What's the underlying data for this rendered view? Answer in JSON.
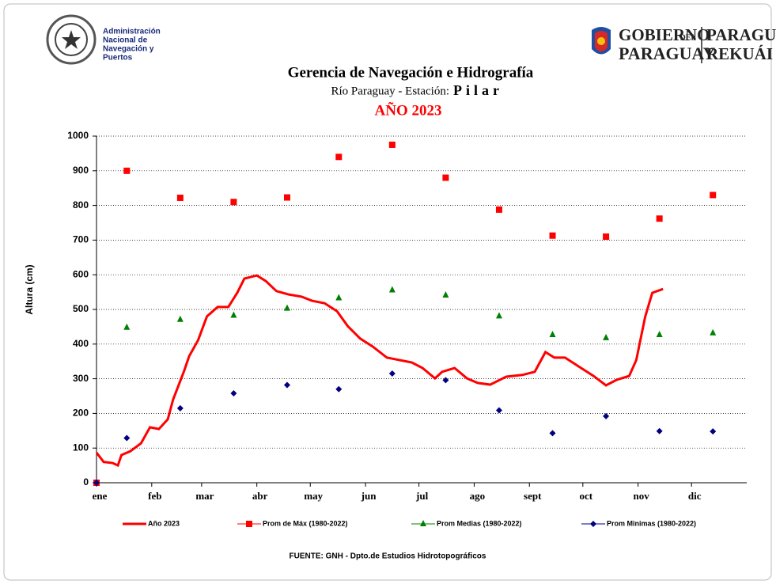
{
  "header": {
    "left_logo": [
      "Administración",
      "Nacional de",
      "Navegación y",
      "Puertos"
    ],
    "gov_line1": "GOBIERNO",
    "gov_del": "DEL",
    "gov_line2": "PARAGUAY",
    "gov_right1": "PARAGUÁI",
    "gov_right2": "REKUÁI"
  },
  "chart_data": {
    "type": "line",
    "title": "Gerencia de Navegación e Hidrografía",
    "subtitle": "Río Paraguay  -  Estación:",
    "station": "Pilar",
    "year_title": "AÑO  2023",
    "y_label": "Altura (cm)",
    "source": "FUENTE: GNH - Dpto.de Estudios Hidrotopográficos",
    "xlim": [
      0,
      365
    ],
    "ylim": [
      0,
      1000
    ],
    "xticks": [
      {
        "value": 0,
        "label": "ene"
      },
      {
        "value": 31,
        "label": "feb"
      },
      {
        "value": 59,
        "label": "mar"
      },
      {
        "value": 90,
        "label": "abr"
      },
      {
        "value": 120,
        "label": "may"
      },
      {
        "value": 151,
        "label": "jun"
      },
      {
        "value": 181,
        "label": "jul"
      },
      {
        "value": 212,
        "label": "ago"
      },
      {
        "value": 243,
        "label": "sept"
      },
      {
        "value": 273,
        "label": "oct"
      },
      {
        "value": 304,
        "label": "nov"
      },
      {
        "value": 334,
        "label": "dic"
      }
    ],
    "yticks": [
      0,
      100,
      200,
      300,
      400,
      500,
      600,
      700,
      800,
      900,
      1000
    ],
    "grid": true,
    "series": [
      {
        "name": "Año 2023",
        "color": "#ff0000",
        "marker": "none",
        "x": [
          0,
          4,
          9,
          12,
          14,
          19,
          25,
          30,
          35,
          40,
          43,
          49,
          52,
          57,
          62,
          68,
          74,
          79,
          83,
          90,
          95,
          101,
          108,
          115,
          121,
          128,
          135,
          141,
          148,
          155,
          163,
          170,
          177,
          183,
          190,
          194,
          201,
          208,
          214,
          221,
          230,
          239,
          246,
          252,
          257,
          263,
          272,
          279,
          286,
          292,
          299,
          303,
          308,
          312,
          318
        ],
        "values": [
          87,
          60,
          57,
          50,
          80,
          91,
          114,
          160,
          155,
          183,
          240,
          320,
          365,
          411,
          480,
          507,
          507,
          548,
          589,
          598,
          582,
          553,
          543,
          537,
          525,
          518,
          495,
          452,
          416,
          393,
          361,
          354,
          347,
          331,
          301,
          320,
          331,
          301,
          288,
          283,
          306,
          311,
          320,
          377,
          361,
          361,
          331,
          308,
          281,
          297,
          308,
          354,
          479,
          548,
          559
        ]
      },
      {
        "name": "Prom de Máx (1980-2022)",
        "color": "#ff0000",
        "marker": "square",
        "x": [
          0,
          17,
          47,
          77,
          107,
          136,
          166,
          196,
          226,
          256,
          286,
          316,
          346
        ],
        "values": [
          0,
          900,
          822,
          810,
          823,
          940,
          975,
          880,
          788,
          713,
          710,
          762,
          830
        ]
      },
      {
        "name": "Prom Medias (1980-2022)",
        "color": "#008000",
        "marker": "triangle",
        "x": [
          17,
          47,
          77,
          107,
          136,
          166,
          196,
          226,
          256,
          286,
          316,
          346
        ],
        "values": [
          448,
          471,
          483,
          503,
          533,
          556,
          541,
          481,
          427,
          418,
          427,
          432
        ]
      },
      {
        "name": "Prom Minimas (1980-2022)",
        "color": "#000080",
        "marker": "diamond",
        "x": [
          0,
          17,
          47,
          77,
          107,
          136,
          166,
          196,
          226,
          256,
          286,
          316,
          346
        ],
        "values": [
          0,
          129,
          215,
          258,
          282,
          270,
          315,
          296,
          209,
          143,
          192,
          149,
          148
        ]
      }
    ]
  }
}
